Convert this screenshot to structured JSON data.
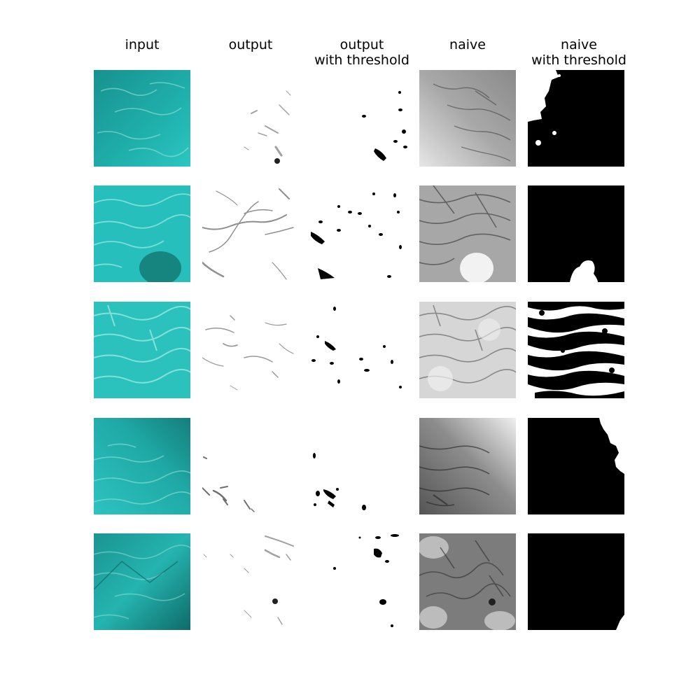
{
  "figure": {
    "column_titles": [
      "input",
      "output",
      "output\nwith threshold",
      "naive",
      "naive\nwith threshold"
    ],
    "row_count": 5,
    "panel_kinds": [
      "input-image",
      "output-map",
      "output-threshold-mask",
      "naive-map",
      "naive-threshold-mask"
    ],
    "colors": {
      "water_light": "#2fc4c0",
      "water_mid": "#1aa9a8",
      "water_dark": "#0f7d7a",
      "mask_black": "#000000",
      "background": "#ffffff"
    }
  }
}
